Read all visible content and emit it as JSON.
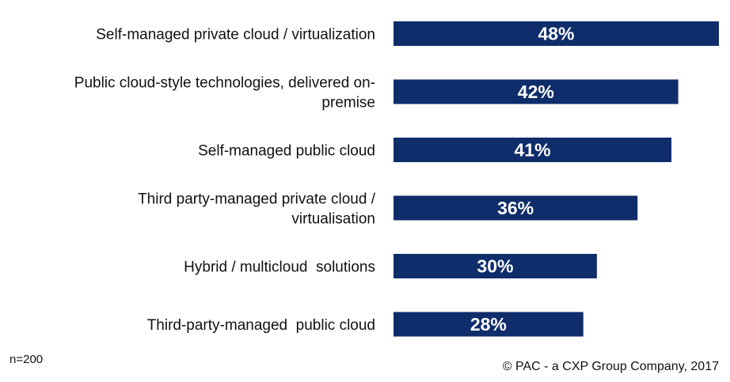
{
  "chart_data": {
    "type": "bar",
    "orientation": "horizontal",
    "categories": [
      [
        "Self-managed private cloud / virtualization"
      ],
      [
        "Public cloud-style technologies, delivered on-",
        "premise"
      ],
      [
        "Self-managed public cloud"
      ],
      [
        "Third party-managed private cloud /",
        "virtualisation"
      ],
      [
        "Hybrid / multicloud  solutions"
      ],
      [
        "Third-party-managed  public cloud"
      ]
    ],
    "values": [
      48,
      42,
      41,
      36,
      30,
      28
    ],
    "value_labels": [
      "48%",
      "42%",
      "41%",
      "36%",
      "30%",
      "28%"
    ],
    "unit": "%",
    "xlim": [
      0,
      48
    ],
    "grid": false,
    "legend": "none",
    "bar_color": "#0f2d6b"
  },
  "footer": {
    "sample_size": "n=200",
    "copyright": "© PAC - a CXP Group Company, 2017"
  }
}
